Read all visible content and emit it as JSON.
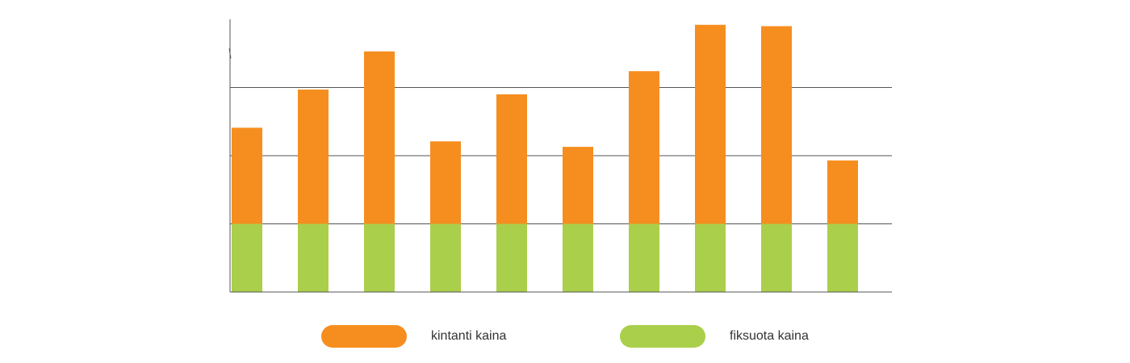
{
  "chart_data": {
    "type": "bar",
    "stacked": true,
    "categories": [
      "",
      "",
      "",
      "",
      "",
      "",
      "",
      "",
      "",
      ""
    ],
    "series": [
      {
        "name": "fiksuota kaina",
        "color": "#aacf4b",
        "values": [
          1,
          1,
          1,
          1,
          1,
          1,
          1,
          1,
          1,
          1
        ]
      },
      {
        "name": "kintanti kaina",
        "color": "#f68e1f",
        "values": [
          1.41,
          1.97,
          2.53,
          1.21,
          1.9,
          1.13,
          2.24,
          2.92,
          2.9,
          0.93
        ]
      }
    ],
    "ylim": [
      0,
      4
    ],
    "gridlines": [
      1,
      2,
      3
    ],
    "grid": true,
    "legend_position": "bottom-center",
    "colors": {
      "axis": "#555555",
      "grid": "#555555"
    }
  }
}
